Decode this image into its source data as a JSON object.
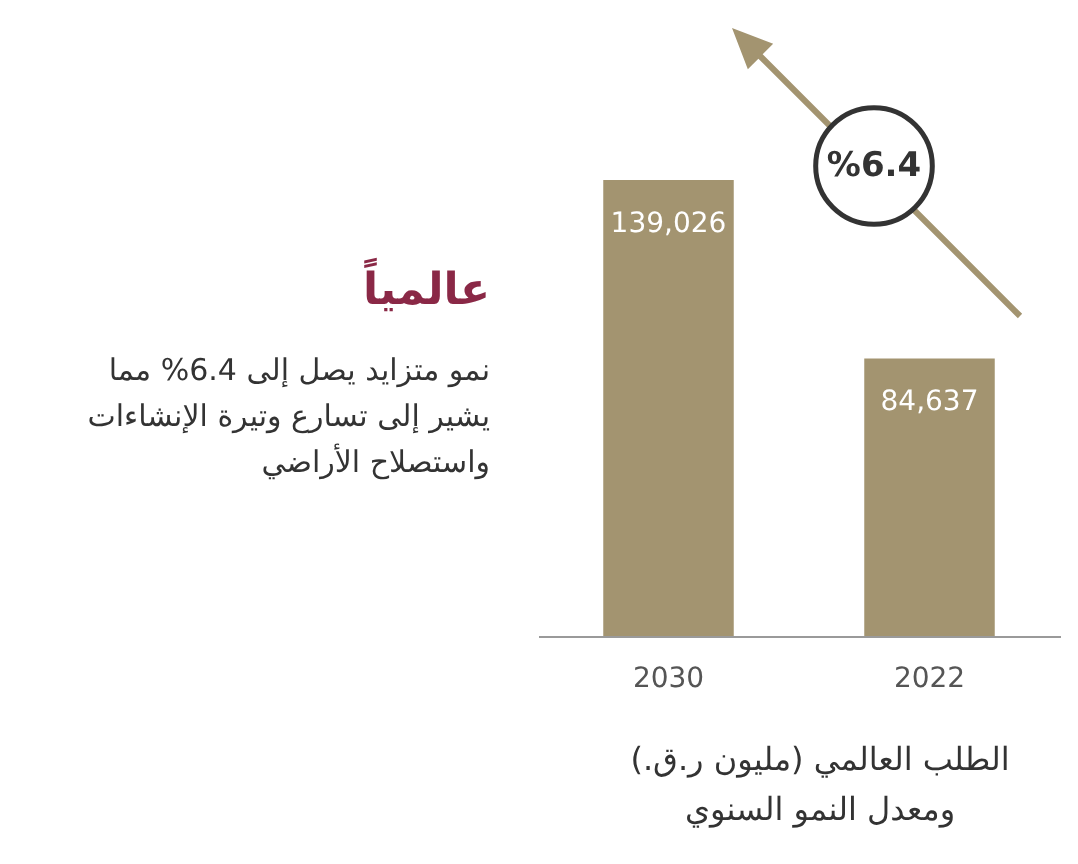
{
  "chart_data": {
    "type": "bar",
    "title": "عالمياً",
    "subtitle": "نمو متزايد يصل إلى 6.4% مما\nيشير إلى تسارع وتيرة الإنشاءات\nواستصلاح الأراضي",
    "xlabel": "الطلب العالمي (مليون ر.ق.)\nومعدل النمو السنوي",
    "annotations": [
      "%6.4"
    ],
    "categories": [
      "2030",
      "2022"
    ],
    "values": [
      139026,
      84637
    ],
    "value_labels": [
      "139,026",
      "84,637"
    ],
    "color": "#a39470",
    "tick_labels": "x"
  }
}
